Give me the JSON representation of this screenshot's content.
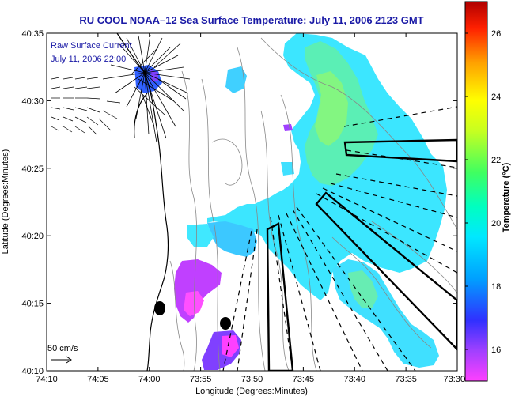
{
  "title": "RU COOL  NOAA–12  Sea Surface Temperature:  July 11, 2006 2123 GMT",
  "legend": {
    "line1": "Raw Surface Current",
    "line2": "July 11, 2006 22:00",
    "scale_label": "50 cm/s"
  },
  "chart_data": {
    "type": "heatmap",
    "x_axis": {
      "label": "Longitude (Degrees:Minutes)",
      "ticks": [
        "74:10",
        "74:05",
        "74:00",
        "73:55",
        "73:50",
        "73:45",
        "73:40",
        "73:35",
        "73:30"
      ]
    },
    "y_axis": {
      "label": "Latitude (Degrees:Minutes)",
      "ticks": [
        "40:35",
        "40:30",
        "40:25",
        "40:20",
        "40:15",
        "40:10"
      ]
    },
    "colorbar": {
      "label": "Temperature (°C)",
      "ticks": [
        "16",
        "18",
        "20",
        "22",
        "24",
        "26"
      ],
      "range": [
        15,
        27
      ],
      "colors": [
        "#ff40ff",
        "#8040ff",
        "#2020ff",
        "#00c8ff",
        "#00ffc8",
        "#40ff60",
        "#c8ff20",
        "#ffff00",
        "#ffa000",
        "#ff2000",
        "#c00000"
      ]
    }
  }
}
